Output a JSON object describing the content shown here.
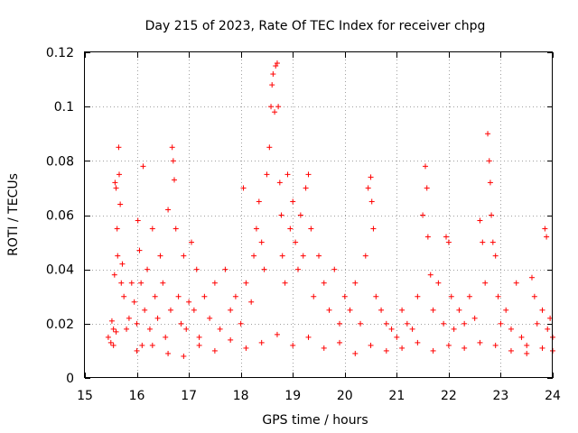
{
  "chart_data": {
    "type": "scatter",
    "title": "Day 215 of 2023, Rate Of TEC Index for receiver chpg",
    "xlabel": "GPS time / hours",
    "ylabel": "ROTI / TECUs",
    "xlim": [
      15,
      24
    ],
    "ylim": [
      0,
      0.12
    ],
    "xticks": [
      "15",
      "16",
      "17",
      "18",
      "19",
      "20",
      "21",
      "22",
      "23",
      "24"
    ],
    "yticks": [
      "0",
      "0.02",
      "0.04",
      "0.06",
      "0.08",
      "0.1",
      "0.12"
    ],
    "grid": true,
    "marker": "+",
    "color": "#ff0000",
    "series": [
      {
        "points": [
          [
            15.45,
            0.015
          ],
          [
            15.5,
            0.013
          ],
          [
            15.52,
            0.021
          ],
          [
            15.55,
            0.018
          ],
          [
            15.57,
            0.038
          ],
          [
            15.58,
            0.072
          ],
          [
            15.6,
            0.07
          ],
          [
            15.62,
            0.055
          ],
          [
            15.63,
            0.045
          ],
          [
            15.65,
            0.085
          ],
          [
            15.66,
            0.075
          ],
          [
            15.68,
            0.064
          ],
          [
            15.7,
            0.035
          ],
          [
            15.72,
            0.042
          ],
          [
            15.75,
            0.03
          ],
          [
            15.8,
            0.018
          ],
          [
            15.85,
            0.022
          ],
          [
            15.9,
            0.035
          ],
          [
            15.95,
            0.028
          ],
          [
            16.0,
            0.02
          ],
          [
            16.02,
            0.058
          ],
          [
            16.05,
            0.047
          ],
          [
            16.08,
            0.035
          ],
          [
            16.1,
            0.012
          ],
          [
            16.12,
            0.078
          ],
          [
            16.15,
            0.025
          ],
          [
            16.2,
            0.04
          ],
          [
            16.25,
            0.018
          ],
          [
            16.3,
            0.055
          ],
          [
            16.35,
            0.03
          ],
          [
            16.4,
            0.022
          ],
          [
            16.45,
            0.045
          ],
          [
            16.5,
            0.035
          ],
          [
            16.55,
            0.015
          ],
          [
            16.6,
            0.062
          ],
          [
            16.65,
            0.025
          ],
          [
            16.68,
            0.085
          ],
          [
            16.7,
            0.08
          ],
          [
            16.72,
            0.073
          ],
          [
            16.75,
            0.055
          ],
          [
            16.8,
            0.03
          ],
          [
            16.85,
            0.02
          ],
          [
            16.9,
            0.045
          ],
          [
            16.95,
            0.018
          ],
          [
            17.0,
            0.028
          ],
          [
            17.05,
            0.05
          ],
          [
            17.1,
            0.025
          ],
          [
            17.15,
            0.04
          ],
          [
            17.2,
            0.015
          ],
          [
            17.3,
            0.03
          ],
          [
            17.4,
            0.022
          ],
          [
            17.5,
            0.035
          ],
          [
            17.6,
            0.018
          ],
          [
            17.7,
            0.04
          ],
          [
            17.8,
            0.025
          ],
          [
            17.9,
            0.03
          ],
          [
            18.0,
            0.02
          ],
          [
            18.05,
            0.07
          ],
          [
            18.1,
            0.035
          ],
          [
            18.2,
            0.028
          ],
          [
            18.25,
            0.045
          ],
          [
            18.3,
            0.055
          ],
          [
            18.35,
            0.065
          ],
          [
            18.4,
            0.05
          ],
          [
            18.45,
            0.04
          ],
          [
            18.5,
            0.075
          ],
          [
            18.55,
            0.085
          ],
          [
            18.58,
            0.1
          ],
          [
            18.6,
            0.108
          ],
          [
            18.62,
            0.112
          ],
          [
            18.65,
            0.098
          ],
          [
            18.67,
            0.115
          ],
          [
            18.7,
            0.116
          ],
          [
            18.72,
            0.1
          ],
          [
            18.75,
            0.072
          ],
          [
            18.78,
            0.06
          ],
          [
            18.8,
            0.045
          ],
          [
            18.85,
            0.035
          ],
          [
            18.9,
            0.075
          ],
          [
            18.95,
            0.055
          ],
          [
            19.0,
            0.065
          ],
          [
            19.05,
            0.05
          ],
          [
            19.1,
            0.04
          ],
          [
            19.15,
            0.06
          ],
          [
            19.2,
            0.045
          ],
          [
            19.25,
            0.07
          ],
          [
            19.3,
            0.075
          ],
          [
            19.35,
            0.055
          ],
          [
            19.4,
            0.03
          ],
          [
            19.5,
            0.045
          ],
          [
            19.6,
            0.035
          ],
          [
            19.7,
            0.025
          ],
          [
            19.8,
            0.04
          ],
          [
            19.9,
            0.02
          ],
          [
            20.0,
            0.03
          ],
          [
            20.1,
            0.025
          ],
          [
            20.2,
            0.035
          ],
          [
            20.3,
            0.02
          ],
          [
            20.4,
            0.045
          ],
          [
            20.45,
            0.07
          ],
          [
            20.5,
            0.074
          ],
          [
            20.52,
            0.065
          ],
          [
            20.55,
            0.055
          ],
          [
            20.6,
            0.03
          ],
          [
            20.7,
            0.025
          ],
          [
            20.8,
            0.02
          ],
          [
            20.9,
            0.018
          ],
          [
            21.0,
            0.015
          ],
          [
            21.1,
            0.025
          ],
          [
            21.2,
            0.02
          ],
          [
            21.3,
            0.018
          ],
          [
            21.4,
            0.03
          ],
          [
            21.5,
            0.06
          ],
          [
            21.55,
            0.078
          ],
          [
            21.58,
            0.07
          ],
          [
            21.6,
            0.052
          ],
          [
            21.65,
            0.038
          ],
          [
            21.7,
            0.025
          ],
          [
            21.8,
            0.035
          ],
          [
            21.9,
            0.02
          ],
          [
            21.95,
            0.052
          ],
          [
            22.0,
            0.05
          ],
          [
            22.05,
            0.03
          ],
          [
            22.1,
            0.018
          ],
          [
            22.2,
            0.025
          ],
          [
            22.3,
            0.02
          ],
          [
            22.4,
            0.03
          ],
          [
            22.5,
            0.022
          ],
          [
            22.6,
            0.058
          ],
          [
            22.65,
            0.05
          ],
          [
            22.7,
            0.035
          ],
          [
            22.75,
            0.09
          ],
          [
            22.78,
            0.08
          ],
          [
            22.8,
            0.072
          ],
          [
            22.82,
            0.06
          ],
          [
            22.85,
            0.05
          ],
          [
            22.9,
            0.045
          ],
          [
            22.95,
            0.03
          ],
          [
            23.0,
            0.02
          ],
          [
            23.1,
            0.025
          ],
          [
            23.2,
            0.018
          ],
          [
            23.3,
            0.035
          ],
          [
            23.4,
            0.015
          ],
          [
            23.5,
            0.012
          ],
          [
            23.6,
            0.037
          ],
          [
            23.65,
            0.03
          ],
          [
            23.7,
            0.02
          ],
          [
            23.8,
            0.025
          ],
          [
            23.85,
            0.055
          ],
          [
            23.88,
            0.052
          ],
          [
            23.9,
            0.018
          ],
          [
            23.95,
            0.022
          ],
          [
            24.0,
            0.015
          ],
          [
            15.55,
            0.012
          ],
          [
            15.6,
            0.017
          ],
          [
            16.0,
            0.01
          ],
          [
            16.3,
            0.012
          ],
          [
            16.6,
            0.009
          ],
          [
            16.9,
            0.008
          ],
          [
            17.2,
            0.012
          ],
          [
            17.5,
            0.01
          ],
          [
            17.8,
            0.014
          ],
          [
            18.1,
            0.011
          ],
          [
            18.4,
            0.013
          ],
          [
            18.7,
            0.016
          ],
          [
            19.0,
            0.012
          ],
          [
            19.3,
            0.015
          ],
          [
            19.6,
            0.011
          ],
          [
            19.9,
            0.013
          ],
          [
            20.2,
            0.009
          ],
          [
            20.5,
            0.012
          ],
          [
            20.8,
            0.01
          ],
          [
            21.1,
            0.011
          ],
          [
            21.4,
            0.013
          ],
          [
            21.7,
            0.01
          ],
          [
            22.0,
            0.012
          ],
          [
            22.3,
            0.011
          ],
          [
            22.6,
            0.013
          ],
          [
            22.9,
            0.012
          ],
          [
            23.2,
            0.01
          ],
          [
            23.5,
            0.009
          ],
          [
            23.8,
            0.011
          ],
          [
            24.0,
            0.01
          ]
        ]
      }
    ]
  }
}
